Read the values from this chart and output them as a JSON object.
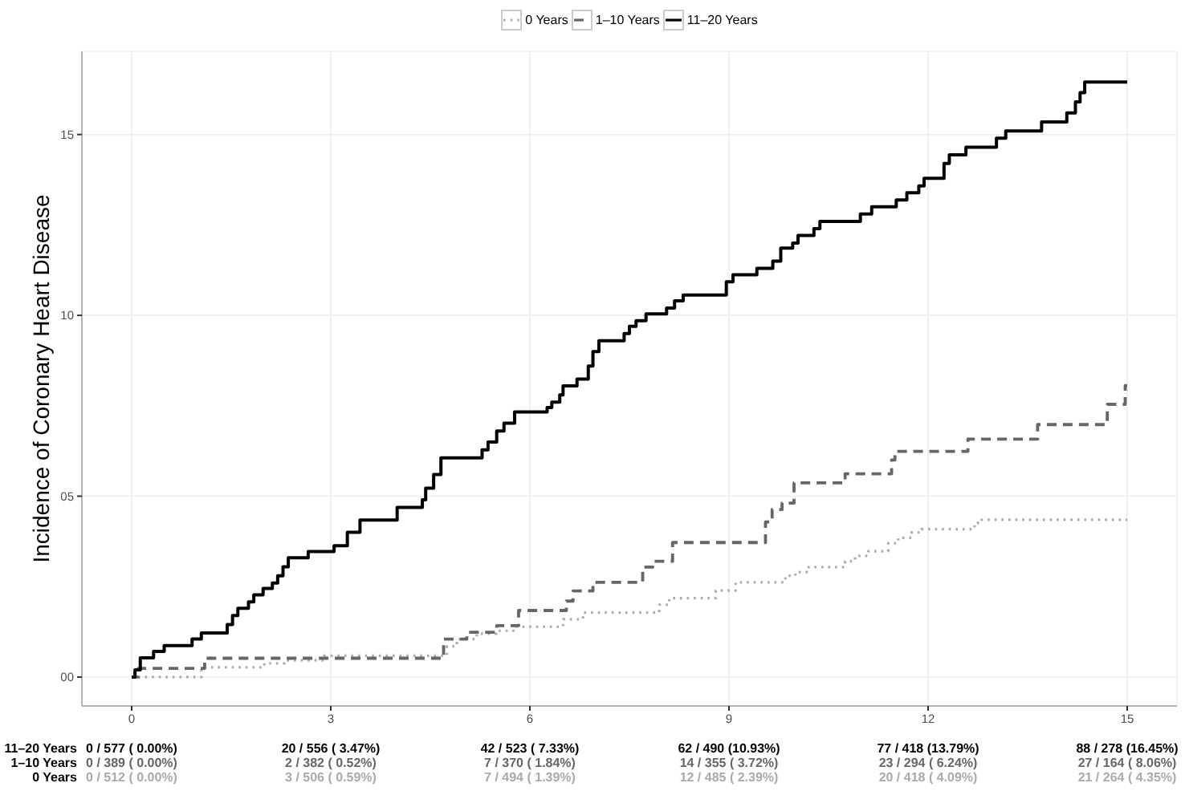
{
  "chart_data": {
    "type": "step",
    "ylabel": "Incidence of Coronary Heart Disease",
    "xlim": [
      -0.75,
      15.75
    ],
    "xticks": [
      0,
      3,
      6,
      9,
      12,
      15
    ],
    "ylim": [
      -0.8,
      17.3
    ],
    "yticks": [
      {
        "value": 0,
        "label": "00"
      },
      {
        "value": 5,
        "label": "05"
      },
      {
        "value": 10,
        "label": "10"
      },
      {
        "value": 15,
        "label": "15"
      }
    ],
    "grid": true,
    "legend": "top",
    "series": [
      {
        "name": "0 Years",
        "color": "#aaaaaa",
        "line_style": "dotted",
        "x": [
          0,
          1.05,
          2.0,
          2.3,
          2.9,
          3,
          4.75,
          4.9,
          5.2,
          5.5,
          5.75,
          6,
          6.5,
          6.8,
          7.95,
          8.1,
          8.8,
          9,
          9.1,
          9.85,
          10.0,
          10.2,
          10.75,
          10.9,
          11.1,
          11.4,
          11.55,
          11.75,
          11.9,
          12,
          12.7,
          12.75,
          15
        ],
        "values": [
          0,
          0.27,
          0.38,
          0.46,
          0.59,
          0.59,
          0.85,
          1.05,
          1.2,
          1.28,
          1.39,
          1.39,
          1.6,
          1.78,
          2.0,
          2.18,
          2.39,
          2.39,
          2.62,
          2.8,
          2.9,
          3.04,
          3.2,
          3.35,
          3.48,
          3.7,
          3.85,
          4.0,
          4.09,
          4.09,
          4.25,
          4.35,
          4.35
        ]
      },
      {
        "name": "1–10 Years",
        "color": "#666666",
        "line_style": "dashed",
        "x": [
          0,
          0.1,
          1.1,
          3,
          4.7,
          5.05,
          5.5,
          5.83,
          6,
          6.55,
          6.65,
          6.95,
          7.7,
          7.85,
          8.15,
          9,
          9.55,
          9.65,
          9.8,
          9.98,
          10.75,
          11.45,
          11.5,
          12,
          12.6,
          13.65,
          14.7,
          14.97,
          15
        ],
        "values": [
          0,
          0.24,
          0.52,
          0.52,
          1.05,
          1.24,
          1.42,
          1.84,
          1.84,
          2.1,
          2.38,
          2.62,
          3.04,
          3.2,
          3.72,
          3.72,
          4.29,
          4.63,
          4.81,
          5.37,
          5.62,
          6.0,
          6.24,
          6.24,
          6.58,
          6.98,
          7.54,
          8.06,
          8.06
        ]
      },
      {
        "name": "11–20 Years",
        "color": "#000000",
        "line_style": "solid",
        "x": [
          0,
          0.05,
          0.13,
          0.33,
          0.49,
          0.91,
          1.05,
          1.44,
          1.52,
          1.6,
          1.76,
          1.84,
          1.98,
          2.12,
          2.2,
          2.28,
          2.36,
          2.66,
          3,
          3.05,
          3.25,
          3.44,
          4.0,
          4.38,
          4.43,
          4.55,
          4.66,
          5.28,
          5.37,
          5.5,
          5.61,
          5.77,
          6,
          6.26,
          6.33,
          6.45,
          6.5,
          6.71,
          6.88,
          6.95,
          7.04,
          7.42,
          7.5,
          7.6,
          7.75,
          8.06,
          8.18,
          8.31,
          8.96,
          9,
          9.06,
          9.42,
          9.66,
          9.78,
          9.96,
          10.04,
          10.28,
          10.37,
          10.98,
          11.15,
          11.52,
          11.68,
          11.86,
          11.94,
          12,
          12.24,
          12.32,
          12.57,
          13.03,
          13.17,
          13.71,
          14.09,
          14.22,
          14.29,
          14.36,
          15
        ],
        "values": [
          0,
          0.2,
          0.53,
          0.71,
          0.87,
          1.05,
          1.22,
          1.45,
          1.7,
          1.9,
          2.08,
          2.27,
          2.45,
          2.6,
          2.8,
          3.05,
          3.3,
          3.47,
          3.47,
          3.63,
          4.0,
          4.34,
          4.69,
          4.9,
          5.22,
          5.6,
          6.06,
          6.28,
          6.5,
          6.8,
          7.02,
          7.33,
          7.33,
          7.45,
          7.6,
          7.8,
          8.05,
          8.24,
          8.6,
          9.0,
          9.3,
          9.5,
          9.7,
          9.85,
          10.04,
          10.2,
          10.4,
          10.56,
          10.93,
          10.93,
          11.12,
          11.3,
          11.5,
          11.86,
          12.0,
          12.21,
          12.4,
          12.6,
          12.8,
          13.0,
          13.19,
          13.39,
          13.58,
          13.79,
          13.79,
          14.2,
          14.44,
          14.65,
          14.9,
          15.1,
          15.35,
          15.6,
          15.9,
          16.16,
          16.45,
          16.45
        ]
      }
    ],
    "annotations": [
      "0 / 577 ( 0.00%)",
      "20 / 556 ( 3.47%)",
      "42 / 523 ( 7.33%)",
      "62 / 490 (10.93%)",
      "77 / 418 (13.79%)",
      "88 / 278 (16.45%)",
      "0 / 389 ( 0.00%)",
      "2 / 382 ( 0.52%)",
      "7 / 370 ( 1.84%)",
      "14 / 355 ( 3.72%)",
      "23 / 294 ( 6.24%)",
      "27 / 164 ( 8.06%)",
      "0 / 512 ( 0.00%)",
      "3 / 506 ( 0.59%)",
      "7 / 494 ( 1.39%)",
      "12 / 485 ( 2.39%)",
      "20 / 418 ( 4.09%)",
      "21 / 264 ( 4.35%)"
    ]
  }
}
